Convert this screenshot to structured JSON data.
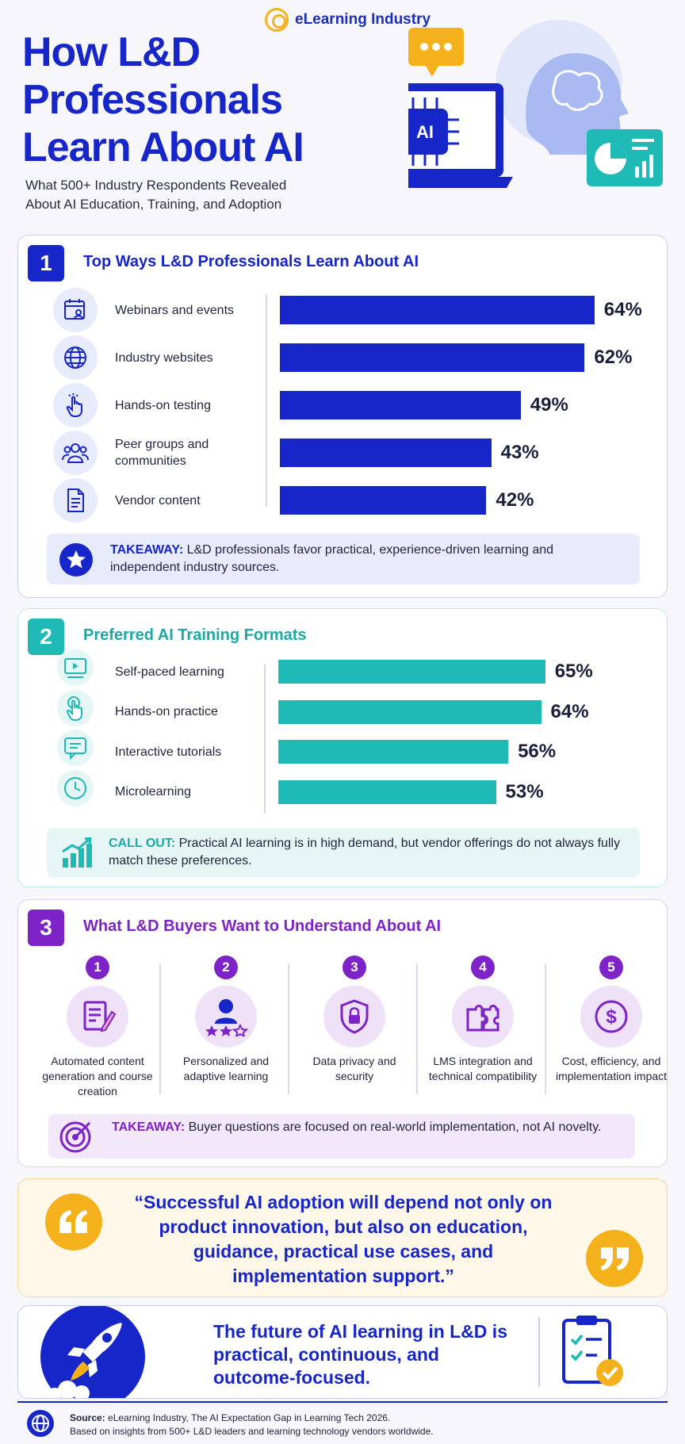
{
  "brand": "eLearning Industry",
  "title_lines": [
    "How L&D",
    "Professionals",
    "Learn About AI"
  ],
  "subtitle_lines": [
    "What 500+ Industry Respondents Revealed",
    "About AI Education, Training, and Adoption"
  ],
  "hero_chip_label": "AI",
  "colors": {
    "navy": "#1626c8",
    "teal": "#1fbab6",
    "purple": "#7e23c8",
    "yellow": "#f5b11c"
  },
  "chart_data": [
    {
      "type": "bar",
      "orientation": "horizontal",
      "title": "Top Ways L&D Professionals Learn About AI",
      "section_number": "1",
      "categories": [
        "Webinars and events",
        "Industry websites",
        "Hands-on testing",
        "Peer groups and communities",
        "Vendor content"
      ],
      "values": [
        64,
        62,
        49,
        43,
        42
      ],
      "value_labels": [
        "64%",
        "62%",
        "49%",
        "43%",
        "42%"
      ],
      "icons": [
        "calendar-person-icon",
        "globe-icon",
        "pointer-hand-icon",
        "people-icon",
        "document-icon"
      ],
      "color": "#1626c8"
    },
    {
      "type": "bar",
      "orientation": "horizontal",
      "title": "Preferred AI Training Formats",
      "section_number": "2",
      "categories": [
        "Self-paced learning",
        "Hands-on practice",
        "Interactive tutorials",
        "Microlearning"
      ],
      "values": [
        65,
        64,
        56,
        53
      ],
      "value_labels": [
        "65%",
        "64%",
        "56%",
        "53%"
      ],
      "icons": [
        "video-play-icon",
        "touch-hand-icon",
        "chat-bubble-icon",
        "clock-icon"
      ],
      "color": "#1fbab6"
    }
  ],
  "section1_takeaway": {
    "lead": "TAKEAWAY:",
    "text": "L&D professionals favor practical, experience-driven learning and independent industry sources."
  },
  "section2_callout": {
    "lead": "CALL OUT:",
    "text": "Practical AI learning is in high demand, but vendor offerings do not always fully match these preferences."
  },
  "section3": {
    "number": "3",
    "title": "What L&D Buyers Want to Understand About AI",
    "items": [
      {
        "num": "1",
        "label": "Automated content generation and course creation",
        "icon": "document-pen-icon"
      },
      {
        "num": "2",
        "label": "Personalized and adaptive learning",
        "icon": "person-stars-icon"
      },
      {
        "num": "3",
        "label": "Data privacy and security",
        "icon": "shield-lock-icon"
      },
      {
        "num": "4",
        "label": "LMS integration and technical compatibility",
        "icon": "puzzle-icon"
      },
      {
        "num": "5",
        "label": "Cost, efficiency, and implementation impact",
        "icon": "dollar-icon"
      }
    ],
    "takeaway": {
      "lead": "TAKEAWAY:",
      "text": "Buyer questions are focused on real-world implementation, not AI novelty."
    }
  },
  "quote": "“Successful AI adoption will depend not only on product innovation, but also on education, guidance, practical use cases, and implementation support.”",
  "future": "The future of AI learning in L&D is practical, continuous, and outcome-focused.",
  "footer": {
    "source_lead": "Source:",
    "source_text": "eLearning Industry, The AI Expectation Gap in Learning Tech 2026.",
    "line2": "Based on insights from 500+ L&D leaders and learning technology vendors worldwide."
  }
}
